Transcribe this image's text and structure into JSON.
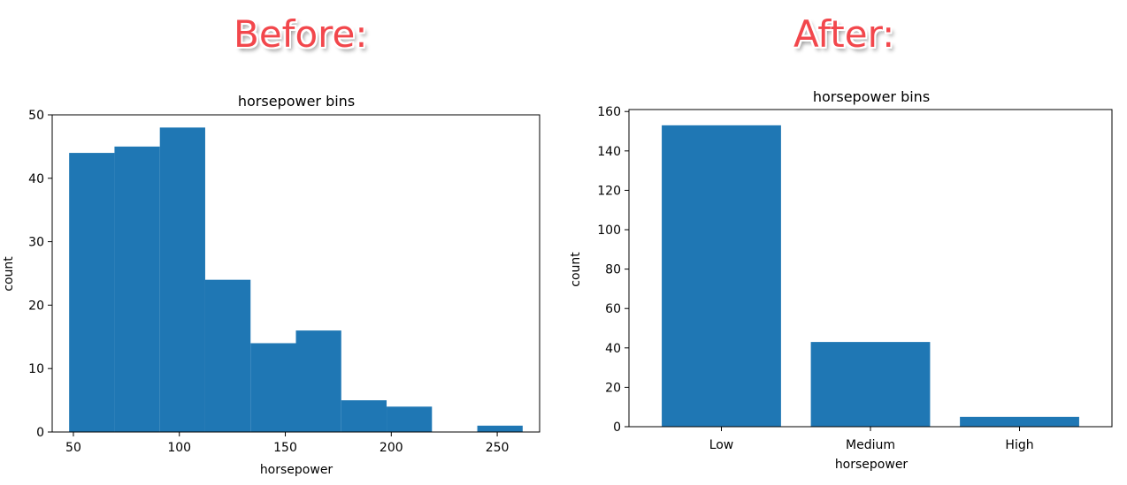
{
  "headings": {
    "before": "Before:",
    "after": "After:"
  },
  "colors": {
    "heading": "#f2474c",
    "bar": "#1f77b4"
  },
  "chart_data": [
    {
      "type": "bar",
      "histogram": true,
      "title": "horsepower bins",
      "xlabel": "horsepower",
      "ylabel": "count",
      "xlim": [
        40,
        270
      ],
      "ylim": [
        0,
        50
      ],
      "xticks": [
        50,
        100,
        150,
        200,
        250
      ],
      "yticks": [
        0,
        10,
        20,
        30,
        40,
        50
      ],
      "bin_edges": [
        48,
        69.4,
        90.8,
        112.2,
        133.6,
        155,
        176.4,
        197.8,
        219.2,
        240.6,
        262
      ],
      "values": [
        44,
        45,
        48,
        24,
        14,
        16,
        5,
        4,
        0,
        1
      ]
    },
    {
      "type": "bar",
      "title": "horsepower bins",
      "xlabel": "horsepower",
      "ylabel": "count",
      "ylim": [
        0,
        161
      ],
      "yticks": [
        0,
        20,
        40,
        60,
        80,
        100,
        120,
        140,
        160
      ],
      "categories": [
        "Low",
        "Medium",
        "High"
      ],
      "values": [
        153,
        43,
        5
      ]
    }
  ]
}
